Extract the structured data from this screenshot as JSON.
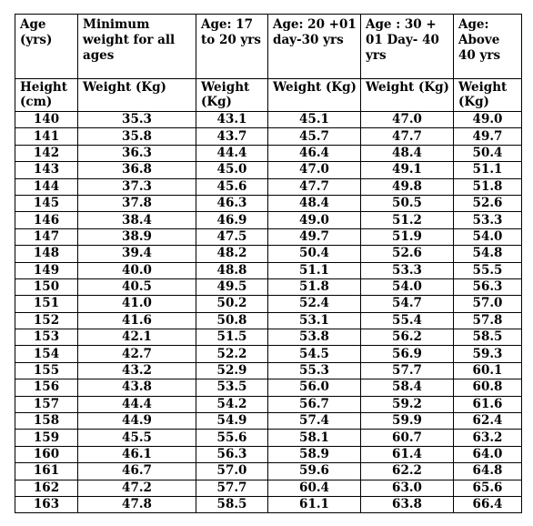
{
  "headers": [
    "Age (yrs)",
    "Minimum weight for all ages",
    "Age: 17 to 20 yrs",
    "Age: 20 +01 day-30 yrs",
    "Age : 30 + 01 Day- 40 yrs",
    "Age: Above 40 yrs"
  ],
  "subheaders": [
    "Height (cm)",
    "Weight (Kg)",
    "Weight (Kg)",
    "Weight (Kg)",
    "Weight (Kg)",
    "Weight (Kg)"
  ],
  "rows": [
    [
      "140",
      "35.3",
      "43.1",
      "45.1",
      "47.0",
      "49.0"
    ],
    [
      "141",
      "35.8",
      "43.7",
      "45.7",
      "47.7",
      "49.7"
    ],
    [
      "142",
      "36.3",
      "44.4",
      "46.4",
      "48.4",
      "50.4"
    ],
    [
      "143",
      "36.8",
      "45.0",
      "47.0",
      "49.1",
      "51.1"
    ],
    [
      "144",
      "37.3",
      "45.6",
      "47.7",
      "49.8",
      "51.8"
    ],
    [
      "145",
      "37.8",
      "46.3",
      "48.4",
      "50.5",
      "52.6"
    ],
    [
      "146",
      "38.4",
      "46.9",
      "49.0",
      "51.2",
      "53.3"
    ],
    [
      "147",
      "38.9",
      "47.5",
      "49.7",
      "51.9",
      "54.0"
    ],
    [
      "148",
      "39.4",
      "48.2",
      "50.4",
      "52.6",
      "54.8"
    ],
    [
      "149",
      "40.0",
      "48.8",
      "51.1",
      "53.3",
      "55.5"
    ],
    [
      "150",
      "40.5",
      "49.5",
      "51.8",
      "54.0",
      "56.3"
    ],
    [
      "151",
      "41.0",
      "50.2",
      "52.4",
      "54.7",
      "57.0"
    ],
    [
      "152",
      "41.6",
      "50.8",
      "53.1",
      "55.4",
      "57.8"
    ],
    [
      "153",
      "42.1",
      "51.5",
      "53.8",
      "56.2",
      "58.5"
    ],
    [
      "154",
      "42.7",
      "52.2",
      "54.5",
      "56.9",
      "59.3"
    ],
    [
      "155",
      "43.2",
      "52.9",
      "55.3",
      "57.7",
      "60.1"
    ],
    [
      "156",
      "43.8",
      "53.5",
      "56.0",
      "58.4",
      "60.8"
    ],
    [
      "157",
      "44.4",
      "54.2",
      "56.7",
      "59.2",
      "61.6"
    ],
    [
      "158",
      "44.9",
      "54.9",
      "57.4",
      "59.9",
      "62.4"
    ],
    [
      "159",
      "45.5",
      "55.6",
      "58.1",
      "60.7",
      "63.2"
    ],
    [
      "160",
      "46.1",
      "56.3",
      "58.9",
      "61.4",
      "64.0"
    ],
    [
      "161",
      "46.7",
      "57.0",
      "59.6",
      "62.2",
      "64.8"
    ],
    [
      "162",
      "47.2",
      "57.7",
      "60.4",
      "63.0",
      "65.6"
    ],
    [
      "163",
      "47.8",
      "58.5",
      "61.1",
      "63.8",
      "66.4"
    ]
  ]
}
